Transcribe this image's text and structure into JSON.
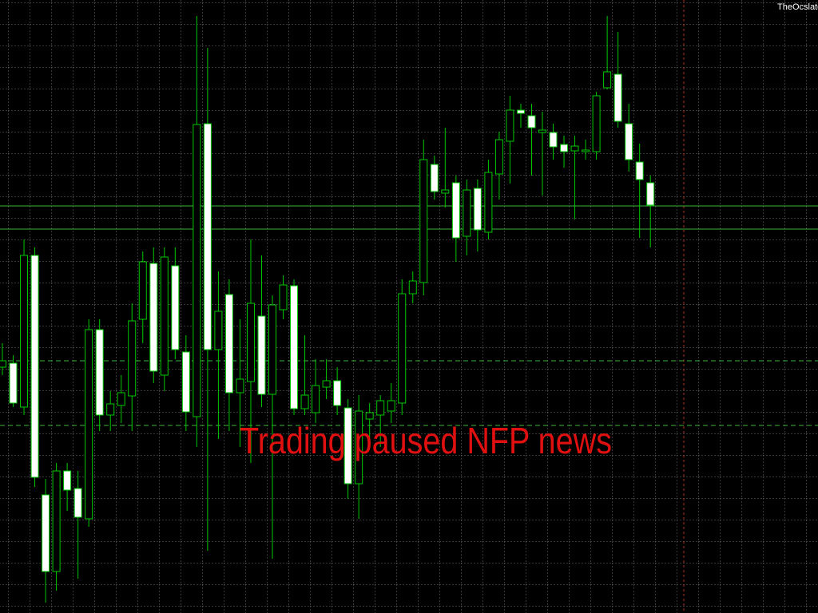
{
  "chart_data": {
    "type": "candlestick",
    "watermark": "TheOcslato",
    "annotation": "Trading paused NFP news",
    "open": [
      308,
      313,
      258,
      448,
      148,
      52,
      178,
      156,
      118,
      355,
      248,
      260,
      272,
      368,
      438,
      298,
      435,
      327,
      246,
      613,
      330,
      399,
      276,
      290,
      372,
      274,
      380,
      410,
      256,
      251,
      283,
      291,
      257,
      162,
      243,
      248,
      253,
      263,
      400,
      414,
      562,
      526,
      539,
      472,
      532,
      477,
      550,
      591,
      630,
      623,
      602,
      602,
      587,
      579,
      578,
      578,
      658,
      675,
      613,
      565,
      539
    ],
    "high": [
      338,
      323,
      468,
      458,
      168,
      188,
      188,
      178,
      368,
      368,
      278,
      298,
      388,
      453,
      458,
      458,
      458,
      348,
      748,
      708,
      428,
      418,
      368,
      468,
      448,
      398,
      423,
      418,
      348,
      318,
      318,
      308,
      268,
      273,
      263,
      273,
      288,
      418,
      428,
      593,
      573,
      608,
      548,
      543,
      543,
      568,
      603,
      648,
      638,
      638,
      628,
      613,
      598,
      598,
      593,
      653,
      748,
      728,
      638,
      588,
      548
    ],
    "low": [
      298,
      258,
      248,
      158,
      13,
      28,
      128,
      43,
      108,
      228,
      228,
      238,
      228,
      338,
      288,
      278,
      318,
      228,
      208,
      78,
      218,
      228,
      208,
      188,
      258,
      68,
      368,
      248,
      248,
      238,
      268,
      248,
      143,
      118,
      208,
      208,
      238,
      248,
      388,
      398,
      518,
      508,
      440,
      448,
      453,
      468,
      518,
      538,
      608,
      548,
      523,
      568,
      558,
      493,
      568,
      568,
      656,
      608,
      553,
      470,
      458
    ],
    "close": [
      316,
      263,
      448,
      170,
      52,
      178,
      154,
      120,
      355,
      248,
      262,
      276,
      366,
      440,
      303,
      446,
      330,
      252,
      612,
      330,
      378,
      276,
      293,
      388,
      274,
      386,
      411,
      256,
      273,
      285,
      291,
      260,
      162,
      253,
      251,
      266,
      266,
      400,
      416,
      568,
      528,
      530,
      470,
      530,
      480,
      552,
      593,
      630,
      626,
      608,
      605,
      584,
      578,
      585,
      580,
      648,
      678,
      616,
      568,
      543,
      511
    ],
    "up_color": "#00c800",
    "down_color": "#ffffff",
    "ylim": [
      0,
      768
    ],
    "levels": [
      {
        "value": 510,
        "color": "#3cb43c",
        "style": "solid"
      },
      {
        "value": 481,
        "color": "#3cb43c",
        "style": "solid"
      },
      {
        "value": 316,
        "color": "#3cb43c",
        "style": "dashed"
      },
      {
        "value": 235,
        "color": "#3cb43c",
        "style": "dashed"
      }
    ],
    "grid": true
  }
}
